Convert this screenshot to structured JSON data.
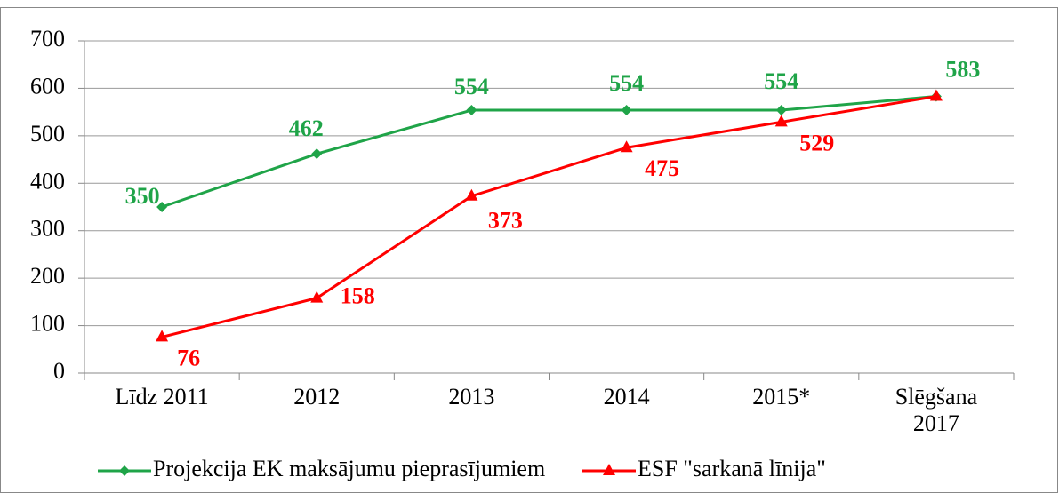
{
  "chart_data": {
    "type": "line",
    "categories": [
      "Līdz 2011",
      "2012",
      "2013",
      "2014",
      "2015*",
      "Slēgšana 2017"
    ],
    "series": [
      {
        "name": "Projekcija EK maksājumu pieprasījumiem",
        "color": "#1fa448",
        "marker": "diamond",
        "values": [
          350,
          462,
          554,
          554,
          554,
          583
        ]
      },
      {
        "name": "ESF \"sarkanā līnija\"",
        "color": "#ff0000",
        "marker": "triangle",
        "values": [
          76,
          158,
          373,
          475,
          529,
          583
        ]
      }
    ],
    "ylim": [
      0,
      700
    ],
    "yticks": [
      0,
      100,
      200,
      300,
      400,
      500,
      600,
      700
    ],
    "grid": true,
    "legend": "bottom"
  }
}
